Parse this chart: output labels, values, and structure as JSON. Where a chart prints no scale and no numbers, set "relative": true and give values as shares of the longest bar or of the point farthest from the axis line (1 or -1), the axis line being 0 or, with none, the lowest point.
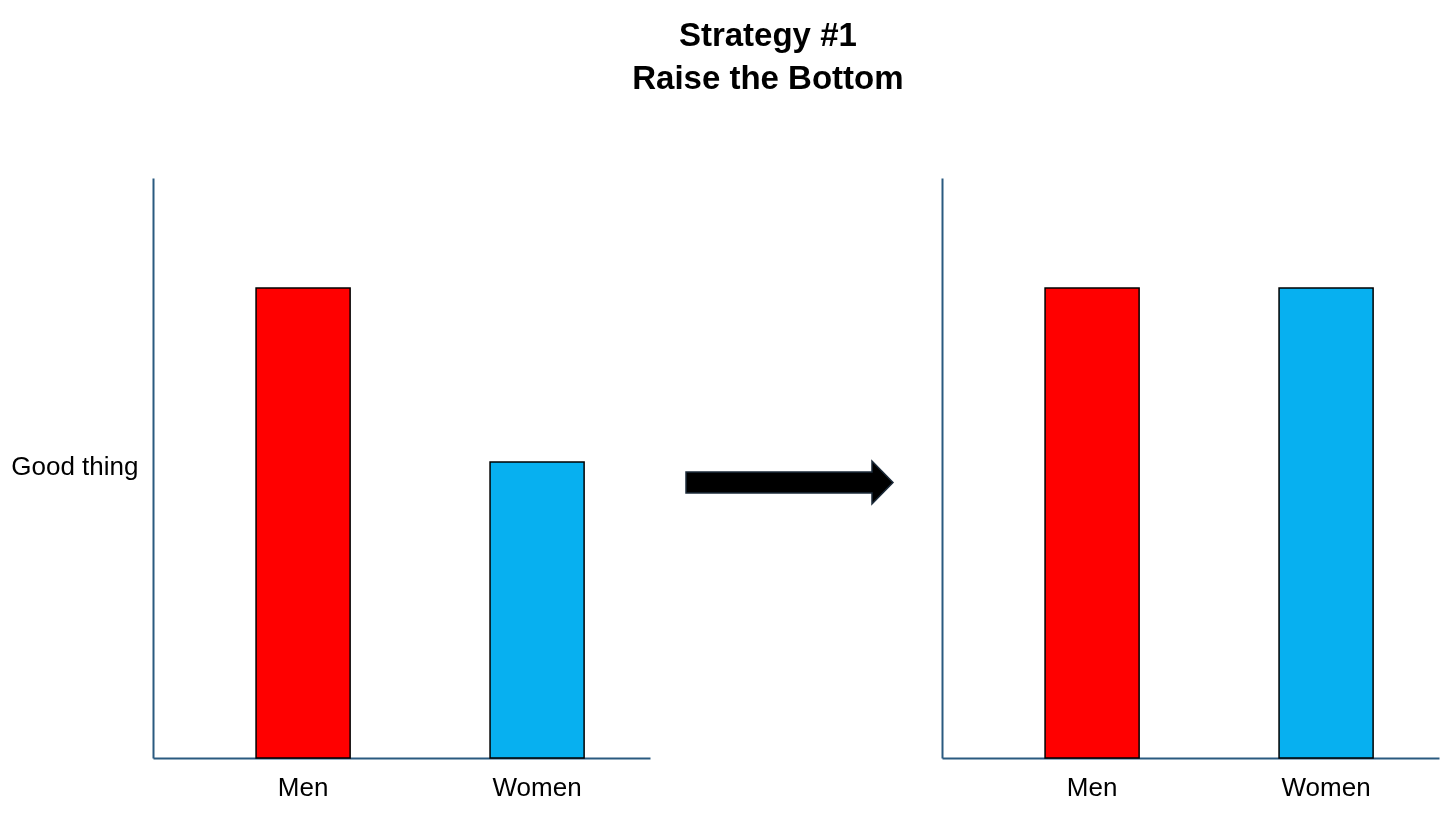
{
  "chart_data": [
    {
      "type": "bar",
      "title": "Strategy #1\nRaise the Bottom",
      "ylabel": "Good thing",
      "categories": [
        "Men",
        "Women"
      ],
      "relative": true,
      "colors": [
        "#ff0000",
        "#07b0f0"
      ],
      "values": [
        1,
        0.63
      ]
    },
    {
      "type": "bar",
      "categories": [
        "Men",
        "Women"
      ],
      "relative": true,
      "colors": [
        "#ff0000",
        "#07b0f0"
      ],
      "values": [
        1,
        1
      ]
    }
  ]
}
